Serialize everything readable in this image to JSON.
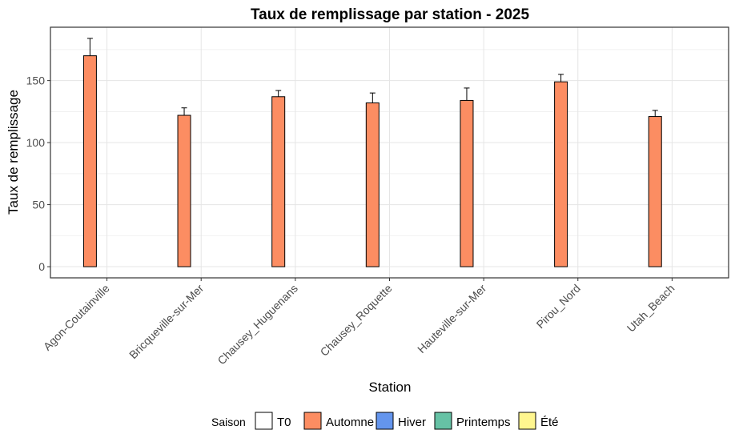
{
  "chart_data": {
    "type": "bar",
    "title": "Taux de remplissage par station  - 2025",
    "xlabel": "Station",
    "ylabel": "Taux de remplissage",
    "ylim": [
      -9,
      193
    ],
    "yticks": [
      0,
      50,
      100,
      150
    ],
    "grid": true,
    "categories": [
      "Agon-Coutainville",
      "Bricqueville-sur-Mer",
      "Chausey_Huguenans",
      "Chausey_Roquette",
      "Hauteville-sur-Mer",
      "Pirou_Nord",
      "Utah_Beach"
    ],
    "series": [
      {
        "name": "Automne",
        "values": [
          170,
          122,
          137,
          132,
          134,
          149,
          121
        ],
        "error_upper": [
          184,
          128,
          142,
          140,
          144,
          155,
          126
        ]
      }
    ],
    "legend": {
      "title": "Saison",
      "position": "bottom",
      "entries": [
        {
          "label": "T0",
          "color": "#FFFFFF"
        },
        {
          "label": "Automne",
          "color": "#FC8D62"
        },
        {
          "label": "Hiver",
          "color": "#6495ED"
        },
        {
          "label": "Printemps",
          "color": "#66C2A5"
        },
        {
          "label": "Été",
          "color": "#FFF68F"
        }
      ]
    }
  }
}
